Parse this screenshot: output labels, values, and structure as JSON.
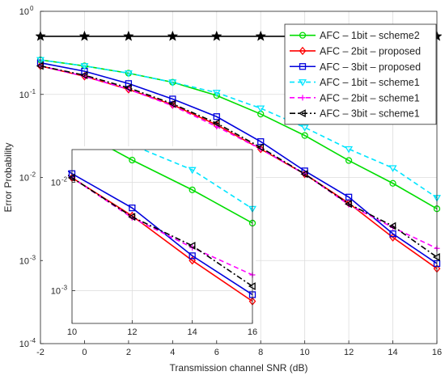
{
  "chart_data": {
    "type": "line",
    "title": "",
    "xlabel": "Transmission channel SNR (dB)",
    "ylabel": "Error Probability",
    "xlim": [
      -2,
      16
    ],
    "ylim": [
      0.0001,
      1
    ],
    "yscale": "log",
    "grid": true,
    "legend_position": "top-right",
    "x_ticks": [
      -2,
      0,
      2,
      4,
      6,
      8,
      10,
      12,
      14,
      16
    ],
    "x_tick_labels": [
      "-2",
      "0",
      "2",
      "4",
      "6",
      "8",
      "10",
      "12",
      "14",
      "16"
    ],
    "y_ticks": [
      0.0001,
      0.001,
      0.01,
      0.1,
      1
    ],
    "y_tick_labels": [
      {
        "base": "10",
        "exp": "-4"
      },
      {
        "base": "10",
        "exp": "-3"
      },
      {
        "base": "10",
        "exp": "-2"
      },
      {
        "base": "10",
        "exp": "-1"
      },
      {
        "base": "10",
        "exp": "0"
      }
    ],
    "baseline": {
      "style": "dash-dot",
      "color": "#000000",
      "marker": "star",
      "x": [
        -2,
        0,
        2,
        4,
        6,
        8,
        10,
        12,
        14,
        16
      ],
      "y": [
        0.5,
        0.5,
        0.5,
        0.5,
        0.5,
        0.5,
        0.5,
        0.5,
        0.5,
        0.5
      ]
    },
    "series": [
      {
        "name": "AFC – 1bit – scheme2",
        "color": "#00dd00",
        "dash": "solid",
        "marker": "circle",
        "x": [
          -2,
          0,
          2,
          4,
          6,
          8,
          10,
          12,
          14,
          16
        ],
        "y": [
          0.26,
          0.22,
          0.18,
          0.14,
          0.097,
          0.058,
          0.032,
          0.016,
          0.0085,
          0.0042
        ]
      },
      {
        "name": "AFC – 2bit – proposed",
        "color": "#ff0000",
        "dash": "solid",
        "marker": "diamond",
        "x": [
          -2,
          0,
          2,
          4,
          6,
          8,
          10,
          12,
          14,
          16
        ],
        "y": [
          0.22,
          0.165,
          0.115,
          0.075,
          0.043,
          0.022,
          0.011,
          0.0049,
          0.0019,
          0.0008
        ]
      },
      {
        "name": "AFC – 3bit – proposed",
        "color": "#0000dd",
        "dash": "solid",
        "marker": "square",
        "x": [
          -2,
          0,
          2,
          4,
          6,
          8,
          10,
          12,
          14,
          16
        ],
        "y": [
          0.24,
          0.19,
          0.135,
          0.088,
          0.054,
          0.027,
          0.012,
          0.0058,
          0.0021,
          0.00092
        ]
      },
      {
        "name": "AFC – 1bit – scheme1",
        "color": "#00e5ff",
        "dash": "dashed",
        "marker": "triangle-down",
        "x": [
          -2,
          0,
          2,
          4,
          6,
          8,
          10,
          12,
          14,
          16
        ],
        "y": [
          0.26,
          0.22,
          0.18,
          0.14,
          0.105,
          0.068,
          0.04,
          0.022,
          0.013,
          0.0057
        ]
      },
      {
        "name": "AFC – 2bit – scheme1",
        "color": "#ff00ff",
        "dash": "dashed",
        "marker": "plus",
        "x": [
          -2,
          0,
          2,
          4,
          6,
          8,
          10,
          12,
          14,
          16
        ],
        "y": [
          0.22,
          0.165,
          0.115,
          0.073,
          0.041,
          0.022,
          0.011,
          0.0047,
          0.0025,
          0.0014
        ]
      },
      {
        "name": "AFC – 3bit – scheme1",
        "color": "#000000",
        "dash": "dashdot",
        "marker": "triangle-left",
        "x": [
          -2,
          0,
          2,
          4,
          6,
          8,
          10,
          12,
          14,
          16
        ],
        "y": [
          0.22,
          0.17,
          0.12,
          0.077,
          0.045,
          0.023,
          0.011,
          0.0048,
          0.0026,
          0.0011
        ]
      }
    ],
    "inset": {
      "xlim": [
        10,
        16
      ],
      "ylim": [
        0.0005,
        0.02
      ],
      "x_ticks": [
        10,
        12,
        14,
        16
      ],
      "x_tick_labels": [
        "10",
        "12",
        "14",
        "16"
      ],
      "y_ticks": [
        0.001,
        0.01
      ],
      "y_tick_labels": [
        {
          "base": "10",
          "exp": "-3"
        },
        {
          "base": "10",
          "exp": "-2"
        }
      ]
    }
  }
}
